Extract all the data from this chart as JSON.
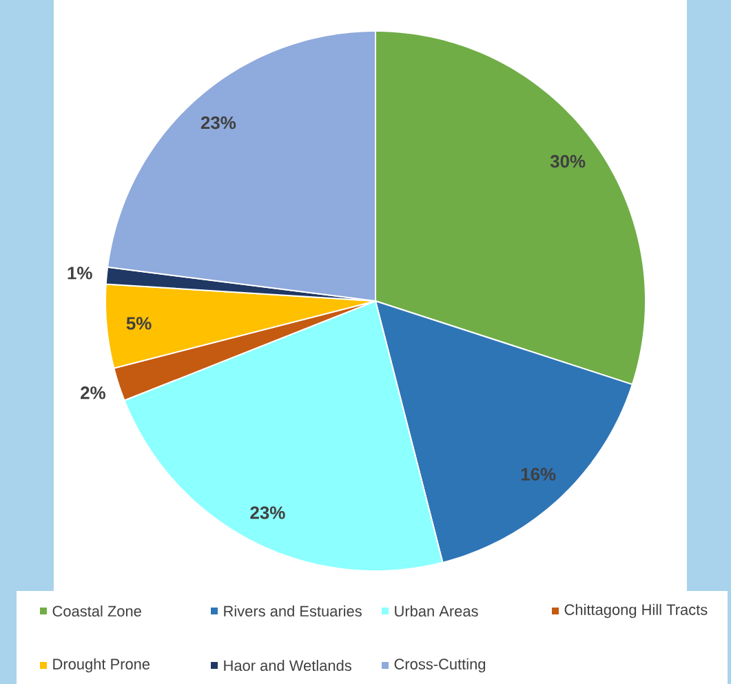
{
  "chart_data": {
    "type": "pie",
    "categories": [
      "Coastal Zone",
      "Rivers and Estuaries",
      "Urban Areas",
      "Chittagong Hill Tracts",
      "Drought Prone",
      "Haor and Wetlands",
      "Cross-Cutting"
    ],
    "values": [
      30,
      16,
      23,
      2,
      5,
      1,
      23
    ],
    "colors": [
      "#70ad47",
      "#2e75b6",
      "#8cffff",
      "#c55a11",
      "#ffc000",
      "#1f3864",
      "#8faadc"
    ],
    "value_labels": [
      "30%",
      "16%",
      "23%",
      "2%",
      "5%",
      "1%",
      "23%"
    ],
    "legend": "bottom"
  }
}
